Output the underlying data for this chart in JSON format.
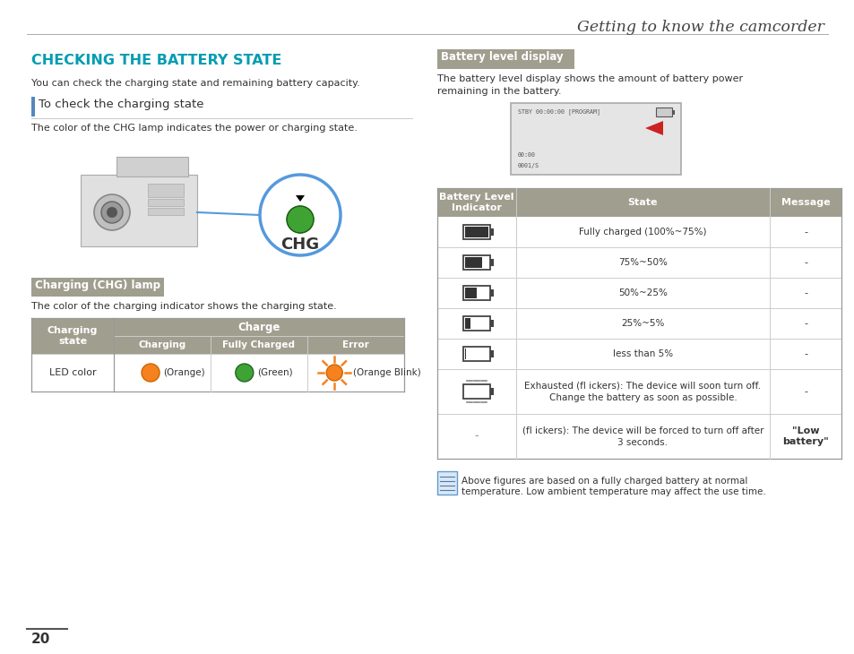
{
  "page_bg": "#ffffff",
  "header_text": "Getting to know the camcorder",
  "header_color": "#444444",
  "title_text": "CHECKING THE BATTERY STATE",
  "title_color": "#009db2",
  "subtitle1": "You can check the charging state and remaining battery capacity.",
  "section1_header": "To check the charging state",
  "section1_desc": "The color of the CHG lamp indicates the power or charging state.",
  "section2_label": "Charging (CHG) lamp",
  "section2_label_bg": "#a09e8e",
  "section2_text": "The color of the charging indicator shows the charging state.",
  "chg_table_header_bg": "#a09e8e",
  "chg_table_sub_bg": "#a09e8e",
  "chg_table_col1": "Charging\nstate",
  "chg_table_charge_header": "Charge",
  "chg_table_subcols": [
    "Charging",
    "Fully Charged",
    "Error"
  ],
  "chg_table_row_label": "LED color",
  "battery_section_label": "Battery level display",
  "battery_section_label_bg": "#a09e8e",
  "battery_section_text1": "The battery level display shows the amount of battery power",
  "battery_section_text2": "remaining in the battery.",
  "battery_table_header_bg": "#a09e8e",
  "battery_table_headers": [
    "Battery Level\nIndicator",
    "State",
    "Message"
  ],
  "battery_rows": [
    {
      "state": "Fully charged (100%~75%)",
      "message": "-"
    },
    {
      "state": "75%~50%",
      "message": "-"
    },
    {
      "state": "50%~25%",
      "message": "-"
    },
    {
      "state": "25%~5%",
      "message": "-"
    },
    {
      "state": "less than 5%",
      "message": "-"
    },
    {
      "state": "Exhausted (fl ickers): The device will soon turn off.\nChange the battery as soon as possible.",
      "message": "-"
    },
    {
      "state": "(fl ickers): The device will be forced to turn off after\n3 seconds.",
      "message": "\"Low\nbattery\""
    }
  ],
  "note_text1": "Above figures are based on a fully charged battery at normal",
  "note_text2": "temperature. Low ambient temperature may affect the use time.",
  "page_number": "20",
  "body_text_color": "#333333",
  "orange_color": "#f5821f",
  "green_color": "#3ea333",
  "table_border_color": "#cccccc",
  "table_outer_color": "#999999"
}
